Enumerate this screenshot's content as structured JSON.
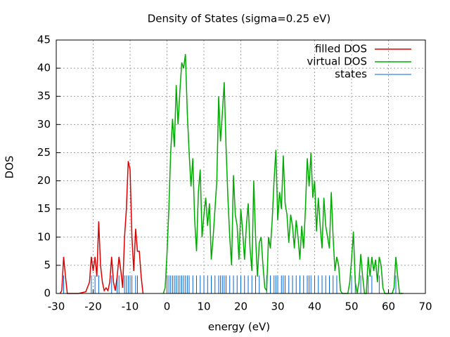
{
  "chart_data": {
    "type": "line",
    "title": "Density of States (sigma=0.25 eV)",
    "xlabel": "energy (eV)",
    "ylabel": "DOS",
    "xlim": [
      -30,
      70
    ],
    "xticks": [
      -30,
      -20,
      -10,
      0,
      10,
      20,
      30,
      40,
      50,
      60,
      70
    ],
    "ylim": [
      0,
      45
    ],
    "yticks": [
      0,
      5,
      10,
      15,
      20,
      25,
      30,
      35,
      40,
      45
    ],
    "grid": true,
    "legend": "top-right",
    "series": [
      {
        "name": "filled DOS",
        "color": "#dd0000",
        "style": "line",
        "x": [
          -29,
          -28.5,
          -28,
          -27.5,
          -27,
          -24,
          -22,
          -21,
          -20.5,
          -20,
          -19.5,
          -19,
          -18.5,
          -18,
          -17.5,
          -17,
          -16.5,
          -16,
          -15.5,
          -15,
          -14.5,
          -14,
          -13.5,
          -13,
          -12.5,
          -12,
          -11.5,
          -11,
          -10.5,
          -10,
          -9.5,
          -9,
          -8.5,
          -8,
          -7.5,
          -7,
          -6.5
        ],
        "values": [
          0,
          0.5,
          6.5,
          3,
          0,
          0,
          0.3,
          2,
          6.5,
          4,
          6.5,
          3,
          12.8,
          5,
          2,
          0.5,
          1,
          0.5,
          2,
          6.5,
          2,
          0.5,
          3,
          6.5,
          4,
          1,
          10,
          15,
          23.5,
          22,
          10,
          4,
          11.5,
          7.5,
          7.5,
          3,
          0
        ]
      },
      {
        "name": "virtual DOS",
        "color": "#00aa00",
        "style": "line",
        "x": [
          -1,
          -0.5,
          0,
          0.5,
          1,
          1.5,
          2,
          2.5,
          3,
          3.5,
          4,
          4.5,
          5,
          5.5,
          6,
          6.5,
          7,
          7.5,
          8,
          8.5,
          9,
          9.5,
          10,
          10.5,
          11,
          11.5,
          12,
          12.5,
          13,
          13.5,
          14,
          14.5,
          15,
          15.5,
          16,
          16.5,
          17,
          17.5,
          18,
          18.5,
          19,
          19.5,
          20,
          20.5,
          21,
          21.5,
          22,
          22.5,
          23,
          23.5,
          24,
          24.5,
          25,
          25.5,
          26,
          26.5,
          27,
          27.5,
          28,
          28.5,
          29,
          29.5,
          30,
          30.5,
          31,
          31.5,
          32,
          32.5,
          33,
          33.5,
          34,
          34.5,
          35,
          35.5,
          36,
          36.5,
          37,
          37.5,
          38,
          38.5,
          39,
          39.5,
          40,
          40.5,
          41,
          41.5,
          42,
          42.5,
          43,
          43.5,
          44,
          44.5,
          45,
          45.5,
          46,
          46.5,
          47,
          47.5,
          49,
          49.5,
          50,
          50.5,
          51,
          51.5,
          52,
          52.5,
          53,
          53.5,
          54,
          54.5,
          55,
          55.5,
          56,
          56.5,
          57,
          57.5,
          58,
          58.5,
          59,
          61,
          61.5,
          62,
          62.5,
          63,
          64
        ],
        "values": [
          0,
          1,
          7,
          15,
          25,
          31,
          26,
          37,
          30,
          36,
          41,
          40,
          42.5,
          32,
          25,
          19,
          24,
          13,
          7.5,
          18,
          22,
          10,
          14,
          17,
          12,
          16,
          6,
          10,
          15,
          20,
          35,
          27,
          32,
          37.5,
          26,
          17,
          10,
          5,
          21,
          14,
          12,
          6,
          15,
          11,
          6,
          12,
          16,
          8,
          4,
          20,
          10,
          3,
          9,
          10,
          5,
          1,
          0.5,
          10,
          8,
          13,
          20,
          25.5,
          13,
          18,
          15,
          24.5,
          16,
          14,
          9,
          14,
          12,
          8,
          13,
          10,
          6,
          12,
          8,
          15,
          24,
          19,
          25,
          17,
          20,
          11,
          17,
          12,
          8,
          17,
          12,
          10,
          8,
          18,
          10,
          4,
          6.5,
          5,
          0.5,
          0,
          0,
          2,
          6,
          11,
          2,
          0,
          2,
          7,
          3,
          0,
          0,
          6.5,
          3,
          6.5,
          4,
          6,
          2,
          6.5,
          5,
          1,
          0,
          0,
          1,
          6.5,
          3,
          0,
          0
        ]
      },
      {
        "name": "states",
        "color": "#0066dd",
        "style": "impulses",
        "x": [
          -28,
          -20.5,
          -19.5,
          -18.5,
          -15,
          -13.5,
          -13,
          -11.5,
          -11,
          -10.5,
          -10,
          -9.5,
          -8.5,
          -8,
          0,
          0.5,
          1,
          1.5,
          2,
          2.5,
          3,
          3.5,
          4,
          4.5,
          5,
          5.5,
          6,
          7,
          8,
          9,
          10,
          11,
          12,
          13,
          14,
          14.5,
          15,
          15.5,
          16,
          17,
          18,
          19,
          20,
          21,
          22,
          23,
          24,
          25,
          27,
          28,
          29,
          29.5,
          30,
          31,
          31.5,
          32,
          33,
          34,
          35,
          36,
          37,
          38,
          38.5,
          39,
          40,
          41,
          42,
          43,
          44,
          45,
          46,
          50,
          51,
          52.5,
          54.5,
          55.5,
          57.5,
          62
        ],
        "values": [
          3.2,
          3.2,
          3.2,
          3.2,
          3.2,
          3.2,
          3.2,
          3.2,
          3.2,
          3.2,
          3.2,
          3.2,
          3.2,
          3.2,
          3.2,
          3.2,
          3.2,
          3.2,
          3.2,
          3.2,
          3.2,
          3.2,
          3.2,
          3.2,
          3.2,
          3.2,
          3.2,
          3.2,
          3.2,
          3.2,
          3.2,
          3.2,
          3.2,
          3.2,
          3.2,
          3.2,
          3.2,
          3.2,
          3.2,
          3.2,
          3.2,
          3.2,
          3.2,
          3.2,
          3.2,
          3.2,
          3.2,
          3.2,
          3.2,
          3.2,
          3.2,
          3.2,
          3.2,
          3.2,
          3.2,
          3.2,
          3.2,
          3.2,
          3.2,
          3.2,
          3.2,
          3.2,
          3.2,
          3.2,
          3.2,
          3.2,
          3.2,
          3.2,
          3.2,
          3.2,
          3.2,
          3.2,
          3.2,
          3.2,
          3.2,
          3.2,
          3.2,
          3.2
        ]
      }
    ]
  }
}
